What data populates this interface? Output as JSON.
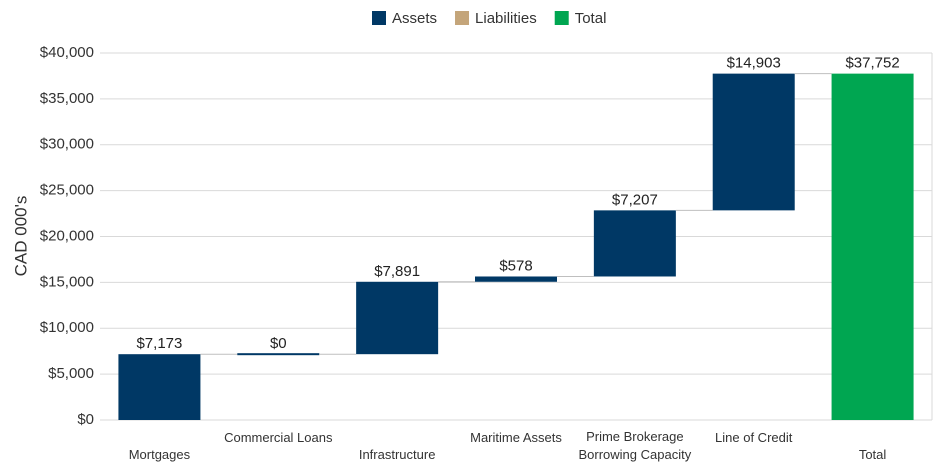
{
  "chart_data": {
    "type": "waterfall",
    "y_label": "CAD 000's",
    "categories": [
      "Mortgages",
      "Commercial Loans",
      "Infrastructure",
      "Maritime Assets",
      "Prime Brokerage Borrowing Capacity",
      "Line of Credit",
      "Total"
    ],
    "series": [
      {
        "name": "Assets",
        "color": "#003865",
        "values": [
          7173,
          0,
          7891,
          578,
          7207,
          14903,
          null
        ],
        "value_labels": [
          "$7,173",
          "$0",
          "$7,891",
          "$578",
          "$7,207",
          "$14,903",
          null
        ]
      },
      {
        "name": "Liabilities",
        "color": "#c4a57a",
        "values": [
          null,
          null,
          null,
          null,
          null,
          null,
          null
        ]
      },
      {
        "name": "Total",
        "color": "#00a651",
        "values": [
          null,
          null,
          null,
          null,
          null,
          null,
          37752
        ],
        "value_labels": [
          null,
          null,
          null,
          null,
          null,
          null,
          "$37,752"
        ]
      }
    ],
    "ylim": [
      0,
      40000
    ],
    "yticks": [
      {
        "value": 0,
        "label": "$0"
      },
      {
        "value": 5000,
        "label": "$5,000"
      },
      {
        "value": 10000,
        "label": "$10,000"
      },
      {
        "value": 15000,
        "label": "$15,000"
      },
      {
        "value": 20000,
        "label": "$20,000"
      },
      {
        "value": 25000,
        "label": "$25,000"
      },
      {
        "value": 30000,
        "label": "$30,000"
      },
      {
        "value": 35000,
        "label": "$35,000"
      },
      {
        "value": 40000,
        "label": "$40,000"
      }
    ],
    "grid": true,
    "legend": "top"
  }
}
